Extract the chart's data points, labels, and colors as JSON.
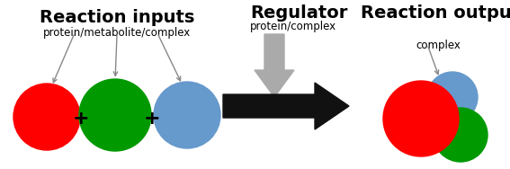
{
  "bg_color": "#ffffff",
  "title_reaction_inputs": "Reaction inputs",
  "subtitle_reaction_inputs": "protein/metabolite/complex",
  "title_regulator": "Regulator",
  "subtitle_regulator": "protein/complex",
  "title_reaction_output": "Reaction output",
  "subtitle_reaction_output": "complex",
  "circle_red": "#ff0000",
  "circle_green": "#009900",
  "circle_blue": "#6699cc",
  "arrow_black": "#111111",
  "arrow_gray": "#aaaaaa",
  "plus_color": "#000000",
  "annotation_color": "#888888",
  "title_fontsize": 14,
  "subtitle_fontsize": 8.5,
  "plus_fontsize": 16
}
